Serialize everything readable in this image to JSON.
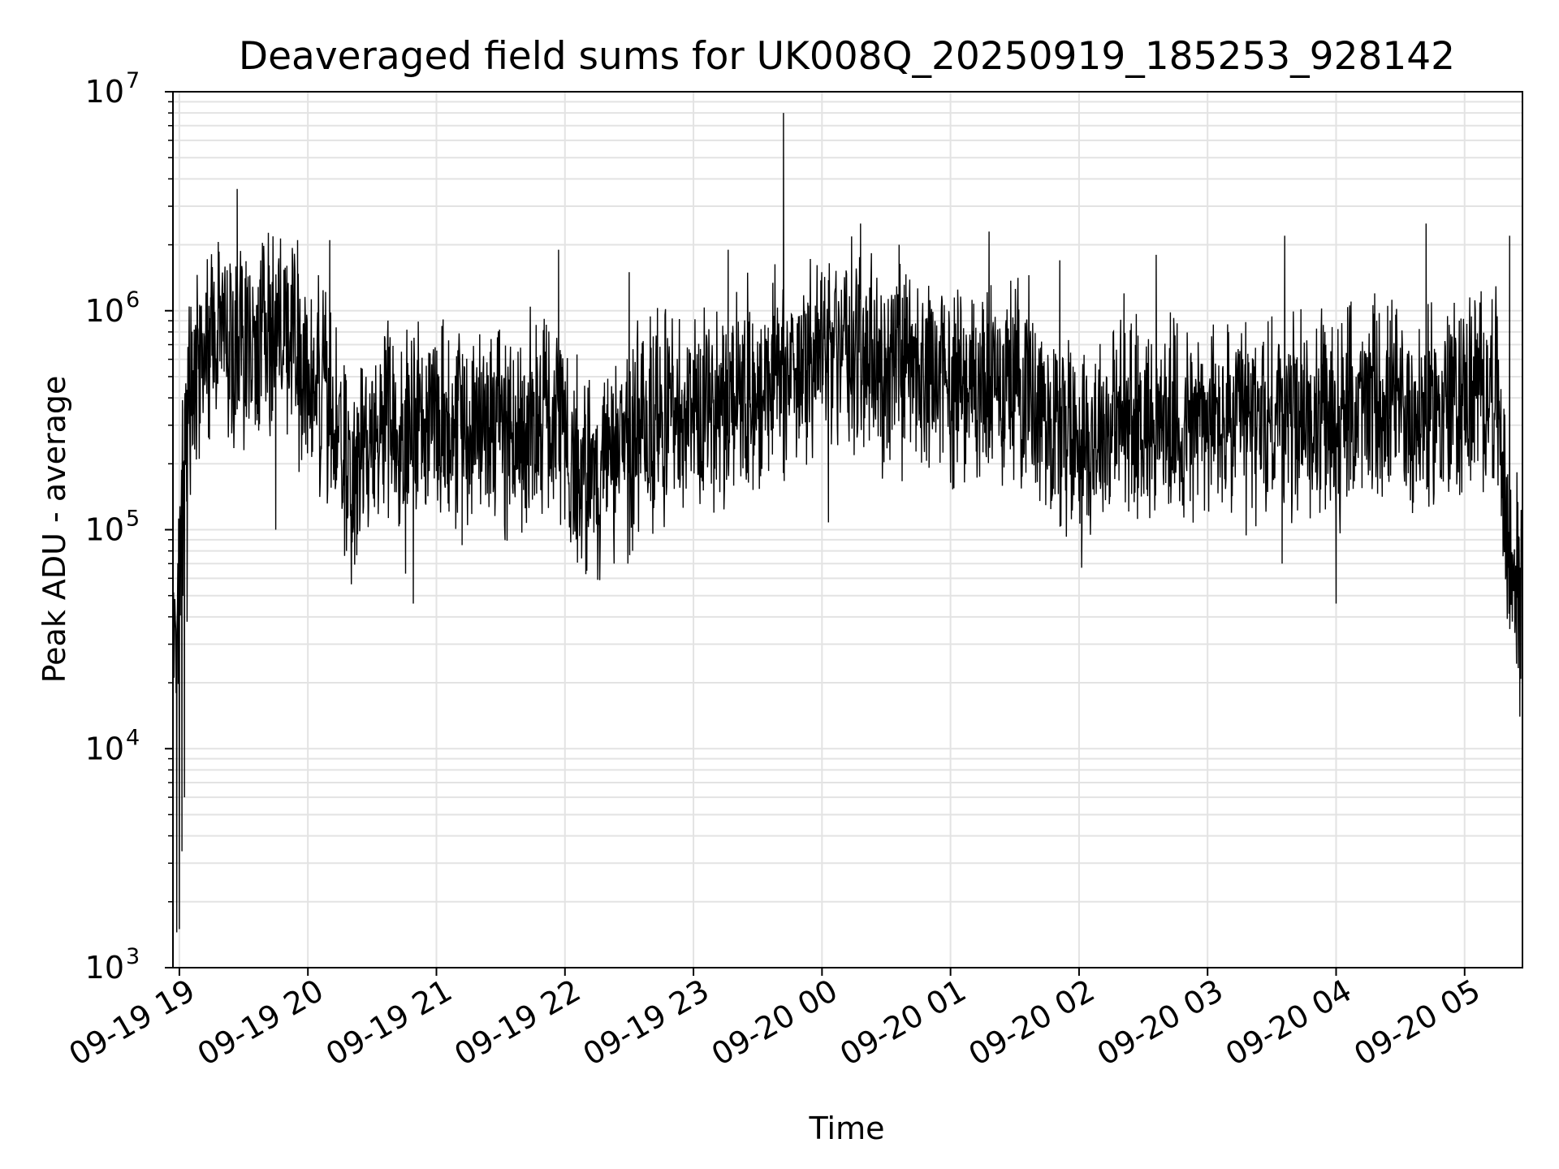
{
  "chart_data": {
    "type": "line",
    "title": "Deaveraged field sums for UK008Q_20250919_185253_928142",
    "xlabel": "Time",
    "ylabel": "Peak ADU - average",
    "yscale": "log",
    "ylim": [
      1000,
      10000000
    ],
    "y_ticks": [
      {
        "base": "10",
        "exp": "3",
        "value": 1000
      },
      {
        "base": "10",
        "exp": "4",
        "value": 10000
      },
      {
        "base": "10",
        "exp": "5",
        "value": 100000
      },
      {
        "base": "10",
        "exp": "6",
        "value": 1000000
      },
      {
        "base": "10",
        "exp": "7",
        "value": 10000000
      }
    ],
    "xlim_hours": [
      -0.05,
      10.45
    ],
    "x_ticks": [
      {
        "label": "09-19 19",
        "hour": 0
      },
      {
        "label": "09-19 20",
        "hour": 1
      },
      {
        "label": "09-19 21",
        "hour": 2
      },
      {
        "label": "09-19 22",
        "hour": 3
      },
      {
        "label": "09-19 23",
        "hour": 4
      },
      {
        "label": "09-20 00",
        "hour": 5
      },
      {
        "label": "09-20 01",
        "hour": 6
      },
      {
        "label": "09-20 02",
        "hour": 7
      },
      {
        "label": "09-20 03",
        "hour": 8
      },
      {
        "label": "09-20 04",
        "hour": 9
      },
      {
        "label": "09-20 05",
        "hour": 10
      }
    ],
    "grid": true,
    "series": [
      {
        "name": "field sums",
        "color": "#000000",
        "x_hours_start": -0.05,
        "x_hours_step": 0.1,
        "baseline_values": [
          15000,
          280000,
          650000,
          700000,
          750000,
          650000,
          700000,
          800000,
          750000,
          650000,
          550000,
          480000,
          380000,
          230000,
          160000,
          220000,
          300000,
          350000,
          330000,
          320000,
          360000,
          340000,
          320000,
          310000,
          300000,
          330000,
          280000,
          300000,
          320000,
          300000,
          280000,
          220000,
          180000,
          170000,
          200000,
          230000,
          260000,
          300000,
          330000,
          320000,
          350000,
          360000,
          380000,
          400000,
          420000,
          450000,
          480000,
          500000,
          520000,
          550000,
          600000,
          650000,
          700000,
          620000,
          600000,
          550000,
          520000,
          500000,
          500000,
          480000,
          480000,
          470000,
          480000,
          450000,
          460000,
          500000,
          500000,
          420000,
          350000,
          300000,
          280000,
          270000,
          280000,
          300000,
          320000,
          330000,
          320000,
          310000,
          300000,
          310000,
          320000,
          300000,
          290000,
          300000,
          310000,
          320000,
          330000,
          340000,
          330000,
          320000,
          300000,
          330000,
          350000,
          370000,
          380000,
          360000,
          340000,
          320000,
          350000,
          380000,
          400000,
          420000,
          430000,
          450000,
          60000
        ],
        "spikes": [
          {
            "hour": 0.45,
            "value": 3600000
          },
          {
            "hour": 0.92,
            "value": 2100000
          },
          {
            "hour": 1.17,
            "value": 2100000
          },
          {
            "hour": 2.95,
            "value": 1900000
          },
          {
            "hour": 3.5,
            "value": 1500000
          },
          {
            "hour": 4.27,
            "value": 1900000
          },
          {
            "hour": 4.7,
            "value": 8000000
          },
          {
            "hour": 5.3,
            "value": 2500000
          },
          {
            "hour": 5.6,
            "value": 2000000
          },
          {
            "hour": 6.3,
            "value": 2300000
          },
          {
            "hour": 6.85,
            "value": 1700000
          },
          {
            "hour": 7.35,
            "value": 1200000
          },
          {
            "hour": 7.6,
            "value": 1800000
          },
          {
            "hour": 8.6,
            "value": 2200000
          },
          {
            "hour": 9.3,
            "value": 1200000
          },
          {
            "hour": 9.7,
            "value": 2500000
          },
          {
            "hour": 10.35,
            "value": 2200000
          }
        ],
        "dips": [
          {
            "hour": -0.02,
            "value": 1450
          },
          {
            "hour": 0.0,
            "value": 1500
          },
          {
            "hour": 0.02,
            "value": 3400
          },
          {
            "hour": 0.04,
            "value": 6000
          },
          {
            "hour": 0.06,
            "value": 38000
          },
          {
            "hour": 0.75,
            "value": 100000
          },
          {
            "hour": 1.3,
            "value": 80000
          },
          {
            "hour": 1.76,
            "value": 63000
          },
          {
            "hour": 1.82,
            "value": 46000
          },
          {
            "hour": 2.2,
            "value": 85000
          },
          {
            "hour": 3.17,
            "value": 65000
          },
          {
            "hour": 3.49,
            "value": 70000
          },
          {
            "hour": 5.05,
            "value": 108000
          },
          {
            "hour": 7.02,
            "value": 67000
          },
          {
            "hour": 8.58,
            "value": 70000
          },
          {
            "hour": 9.0,
            "value": 46000
          },
          {
            "hour": 10.43,
            "value": 14000
          }
        ]
      }
    ]
  }
}
